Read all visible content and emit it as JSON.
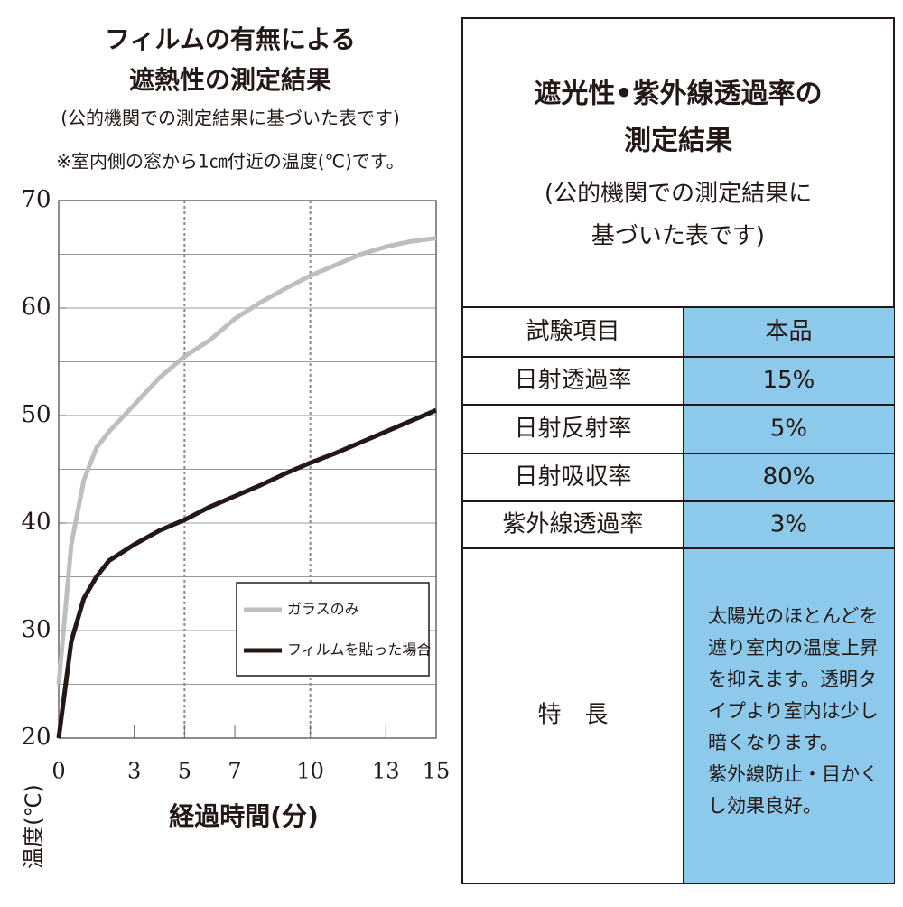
{
  "chart_data": {
    "type": "line",
    "title_lines": [
      "フィルムの有無による",
      "遮熱性の測定結果",
      "(公的機関での測定結果に基づいた表です)",
      "※室内側の窓から1㎝付近の温度(℃)です。"
    ],
    "x_label": "経過時間(分)",
    "y_label": "温度(℃)",
    "x": [
      0,
      0.5,
      1,
      1.5,
      2,
      3,
      4,
      5,
      6,
      7,
      8,
      9,
      10,
      11,
      12,
      13,
      14,
      15
    ],
    "series": [
      {
        "name": "ガラスのみ",
        "color": "#bcbec0",
        "values": [
          25,
          38,
          44,
          47,
          48.5,
          51,
          53.5,
          55.5,
          57,
          59,
          60.5,
          61.8,
          63,
          64,
          65,
          65.7,
          66.2,
          66.5
        ]
      },
      {
        "name": "フィルムを貼った場合",
        "color": "#231815",
        "values": [
          20,
          29,
          33,
          35,
          36.5,
          38,
          39.3,
          40.3,
          41.5,
          42.5,
          43.5,
          44.6,
          45.6,
          46.5,
          47.5,
          48.5,
          49.5,
          50.5
        ]
      }
    ],
    "xlim": [
      0,
      15
    ],
    "xticks": [
      0,
      3,
      5,
      7,
      10,
      13,
      15
    ],
    "xgrid": [
      5,
      10
    ],
    "ylim": [
      20,
      70
    ],
    "yticks": [
      20,
      30,
      40,
      50,
      60,
      70
    ],
    "ygrid": [
      25,
      30,
      35,
      40,
      45,
      50,
      55,
      60,
      65
    ],
    "legend": "lower right"
  },
  "table": {
    "title_lines": [
      "遮光性•紫外線透過率の",
      "測定結果",
      "(公的機関での測定結果に",
      "基づいた表です)"
    ],
    "header": [
      "試験項目",
      "本品"
    ],
    "rows": [
      [
        "日射透過率",
        "15%"
      ],
      [
        "日射反射率",
        "5%"
      ],
      [
        "日射吸収率",
        "80%"
      ],
      [
        "紫外線透過率",
        "3%"
      ]
    ],
    "feature_label": "特　長",
    "feature_lines": [
      "太陽光のほとんどを",
      "遮り室内の温度上昇",
      "を抑えます。透明タ",
      "イプより室内は少し",
      "暗くなります。",
      "紫外線防止・目かく",
      "し効果良好。"
    ]
  }
}
